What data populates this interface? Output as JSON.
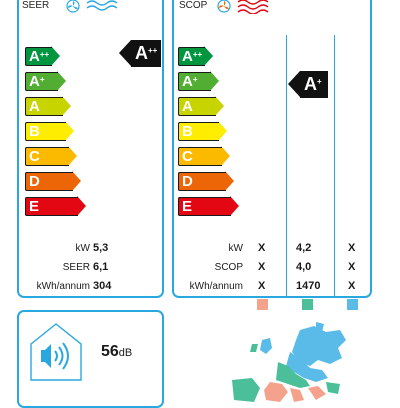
{
  "seer_panel": {
    "header": "SEER",
    "classes": [
      {
        "label": "A",
        "sup": "++",
        "color": "#00963f"
      },
      {
        "label": "A",
        "sup": "+",
        "color": "#52ae32"
      },
      {
        "label": "A",
        "sup": "",
        "color": "#c8d400"
      },
      {
        "label": "B",
        "sup": "",
        "color": "#ffed00"
      },
      {
        "label": "C",
        "sup": "",
        "color": "#fbba00"
      },
      {
        "label": "D",
        "sup": "",
        "color": "#ec6608"
      },
      {
        "label": "E",
        "sup": "",
        "color": "#e30613"
      }
    ],
    "rating": {
      "label": "A",
      "sup": "++"
    },
    "rows": [
      {
        "key": "kW",
        "value": "5,3"
      },
      {
        "key": "SEER",
        "value": "6,1"
      },
      {
        "key": "kWh/annum",
        "value": "304"
      }
    ]
  },
  "scop_panel": {
    "header": "SCOP",
    "rating": {
      "label": "A",
      "sup": "+"
    },
    "rows": [
      {
        "key": "kW",
        "c1": "X",
        "c2": "4,2",
        "c3": "X"
      },
      {
        "key": "SCOP",
        "c1": "X",
        "c2": "4,0",
        "c3": "X"
      },
      {
        "key": "kWh/annum",
        "c1": "X",
        "c2": "1470",
        "c3": "X"
      }
    ],
    "zone_colors": [
      "#f4a28c",
      "#4bbf9a",
      "#5bbbe8"
    ]
  },
  "noise": {
    "value": "56",
    "unit": "dB"
  },
  "icons": [
    "cooling-fan-icon",
    "snowflake-icon",
    "heating-fan-icon",
    "heat-wave-icon",
    "house-speaker-icon",
    "europe-map-icon"
  ]
}
